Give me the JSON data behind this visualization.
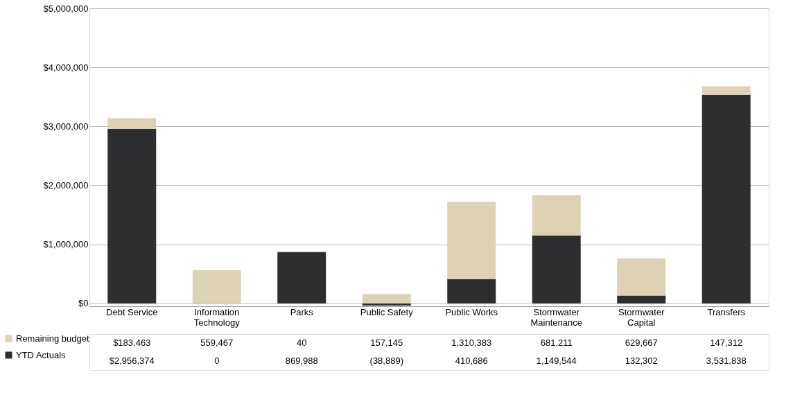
{
  "chart_data": {
    "type": "bar",
    "stacked": true,
    "categories": [
      "Debt Service",
      "Information Technology",
      "Parks",
      "Public Safety",
      "Public Works",
      "Stormwater Maintenance",
      "Stormwater Capital",
      "Transfers"
    ],
    "series": [
      {
        "name": "YTD Actuals",
        "color": "#2e2e30",
        "values": [
          2956374,
          0,
          869988,
          -38889,
          410686,
          1149544,
          132302,
          3531838
        ],
        "value_labels": [
          "$2,956,374",
          "0",
          "869,988",
          "(38,889)",
          "410,686",
          "1,149,544",
          "132,302",
          "3,531,838"
        ]
      },
      {
        "name": "Remaining budget",
        "color": "#ddd2b4",
        "values": [
          183463,
          559467,
          40,
          157145,
          1310383,
          681211,
          629667,
          147312
        ],
        "value_labels": [
          "$183,463",
          "559,467",
          "40",
          "157,145",
          "1,310,383",
          "681,211",
          "629,667",
          "147,312"
        ]
      }
    ],
    "ylim": [
      -50000,
      5000000
    ],
    "yticks": [
      {
        "value": 0,
        "label": "$0"
      },
      {
        "value": 1000000,
        "label": "$1,000,000"
      },
      {
        "value": 2000000,
        "label": "$2,000,000"
      },
      {
        "value": 3000000,
        "label": "$3,000,000"
      },
      {
        "value": 4000000,
        "label": "$4,000,000"
      },
      {
        "value": 5000000,
        "label": "$5,000,000"
      }
    ],
    "grid": "y",
    "legend": "bottom left"
  }
}
